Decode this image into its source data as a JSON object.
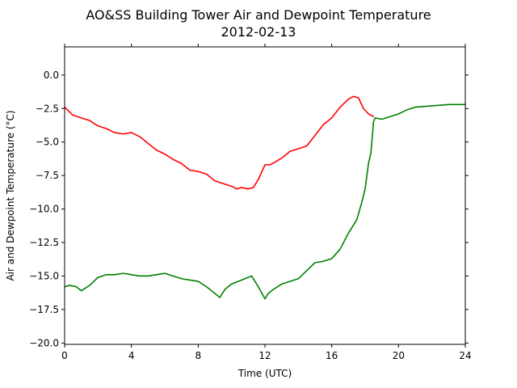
{
  "chart_data": {
    "type": "line",
    "title": "AO&SS Building Tower Air and Dewpoint Temperature",
    "subtitle": "2012-02-13",
    "xlabel": "Time (UTC)",
    "ylabel": "Air and Dewpoint Temperature (°C)",
    "xlim": [
      0,
      24
    ],
    "ylim": [
      -20.1,
      2.1
    ],
    "x_ticks": [
      0,
      4,
      8,
      12,
      16,
      20,
      24
    ],
    "x_tick_labels": [
      "0",
      "4",
      "8",
      "12",
      "16",
      "20",
      "24"
    ],
    "y_ticks": [
      0,
      -2.5,
      -5,
      -7.5,
      -10,
      -12.5,
      -15,
      -17.5,
      -20
    ],
    "y_tick_labels": [
      "0.0",
      "−2.5",
      "−5.0",
      "−7.5",
      "−10.0",
      "−12.5",
      "−15.0",
      "−17.5",
      "−20.0"
    ],
    "grid": false,
    "series": [
      {
        "color": "#ff0000",
        "x": [
          0,
          0.5,
          1.0,
          1.5,
          2.0,
          2.5,
          3.0,
          3.5,
          4.0,
          4.5,
          5.0,
          5.5,
          6.0,
          6.5,
          7.0,
          7.5,
          8.0,
          8.5,
          9.0,
          9.5,
          10.0,
          10.3,
          10.6,
          11.0,
          11.3,
          11.6,
          12.0,
          12.3,
          12.6,
          13.0,
          13.5,
          14.0,
          14.5,
          15.0,
          15.5,
          16.0,
          16.5,
          17.0,
          17.3,
          17.6,
          17.9,
          18.2,
          18.5
        ],
        "y": [
          -2.4,
          -3.0,
          -3.2,
          -3.4,
          -3.8,
          -4.0,
          -4.3,
          -4.4,
          -4.3,
          -4.6,
          -5.1,
          -5.6,
          -5.9,
          -6.3,
          -6.6,
          -7.1,
          -7.2,
          -7.4,
          -7.9,
          -8.1,
          -8.3,
          -8.5,
          -8.4,
          -8.5,
          -8.4,
          -7.8,
          -6.7,
          -6.7,
          -6.5,
          -6.2,
          -5.7,
          -5.5,
          -5.3,
          -4.5,
          -3.7,
          -3.2,
          -2.4,
          -1.8,
          -1.6,
          -1.7,
          -2.5,
          -2.9,
          -3.1
        ]
      },
      {
        "color": "#008000",
        "x": [
          0,
          0.3,
          0.7,
          1.0,
          1.5,
          2.0,
          2.5,
          3.0,
          3.5,
          4.0,
          4.5,
          5.0,
          5.5,
          6.0,
          6.5,
          7.0,
          7.5,
          8.0,
          8.5,
          9.0,
          9.3,
          9.6,
          10.0,
          10.4,
          10.8,
          11.2,
          11.6,
          12.0,
          12.2,
          12.5,
          13.0,
          13.5,
          14.0,
          14.5,
          15.0,
          15.5,
          16.0,
          16.5,
          17.0,
          17.5,
          17.8,
          18.0,
          18.2,
          18.35,
          18.5,
          18.6,
          19.0,
          19.5,
          20.0,
          20.5,
          21.0,
          22.0,
          23.0,
          24.0
        ],
        "y": [
          -15.8,
          -15.7,
          -15.8,
          -16.1,
          -15.7,
          -15.1,
          -14.9,
          -14.9,
          -14.8,
          -14.9,
          -15.0,
          -15.0,
          -14.9,
          -14.8,
          -15.0,
          -15.2,
          -15.3,
          -15.4,
          -15.8,
          -16.3,
          -16.6,
          -16.0,
          -15.6,
          -15.4,
          -15.2,
          -15.0,
          -15.8,
          -16.7,
          -16.3,
          -16.0,
          -15.6,
          -15.4,
          -15.2,
          -14.6,
          -14.0,
          -13.9,
          -13.7,
          -13.0,
          -11.8,
          -10.8,
          -9.5,
          -8.5,
          -6.6,
          -5.8,
          -3.5,
          -3.2,
          -3.3,
          -3.1,
          -2.9,
          -2.6,
          -2.4,
          -2.3,
          -2.2,
          -2.2
        ]
      }
    ]
  }
}
